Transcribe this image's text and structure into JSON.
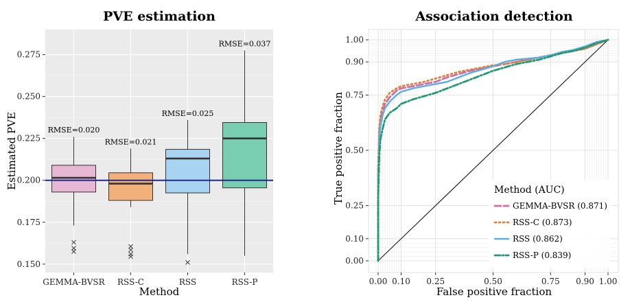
{
  "chart_data": [
    {
      "type": "box",
      "title": "PVE estimation",
      "xlabel": "Method",
      "ylabel": "Estimated PVE",
      "ylim": [
        0.145,
        0.29
      ],
      "yticks": [
        0.15,
        0.175,
        0.2,
        0.225,
        0.25,
        0.275
      ],
      "ytick_labels": [
        "0.150",
        "0.175",
        "0.200",
        "0.225",
        "0.250",
        "0.275"
      ],
      "reference_line": 0.2,
      "reference_color": "#1f2a8c",
      "categories": [
        "GEMMA-BVSR",
        "RSS-C",
        "RSS",
        "RSS-P"
      ],
      "boxes": [
        {
          "name": "GEMMA-BVSR",
          "color": "#e6b8d3",
          "whisker_low": 0.173,
          "q1": 0.193,
          "median": 0.2015,
          "q3": 0.209,
          "whisker_high": 0.226,
          "outliers": [
            0.163,
            0.1595,
            0.1575
          ],
          "rmse_label": "RMSE=0.020"
        },
        {
          "name": "RSS-C",
          "color": "#f2b07a",
          "whisker_low": 0.184,
          "q1": 0.188,
          "median": 0.198,
          "q3": 0.2045,
          "whisker_high": 0.219,
          "outliers": [
            0.1605,
            0.1585,
            0.156,
            0.1545
          ],
          "rmse_label": "RMSE=0.021"
        },
        {
          "name": "RSS",
          "color": "#a8d4f2",
          "whisker_low": 0.156,
          "q1": 0.1925,
          "median": 0.213,
          "q3": 0.2185,
          "whisker_high": 0.236,
          "outliers": [
            0.151
          ],
          "rmse_label": "RMSE=0.025"
        },
        {
          "name": "RSS-P",
          "color": "#79cdb0",
          "whisker_low": 0.155,
          "q1": 0.1955,
          "median": 0.225,
          "q3": 0.2345,
          "whisker_high": 0.2775,
          "outliers": [],
          "rmse_label": "RMSE=0.037"
        }
      ]
    },
    {
      "type": "line",
      "title": "Association detection",
      "xlabel": "False positive fraction",
      "ylabel": "True positive fraction",
      "xlim": [
        0,
        1
      ],
      "ylim": [
        0,
        1
      ],
      "xticks": [
        0.0,
        0.1,
        0.25,
        0.5,
        0.75,
        0.9,
        1.0
      ],
      "xtick_labels": [
        "0.00",
        "0.10",
        "0.25",
        "0.50",
        "0.75",
        "0.90",
        "1.00"
      ],
      "yticks": [
        0.0,
        0.1,
        0.25,
        0.5,
        0.75,
        0.9,
        1.0
      ],
      "ytick_labels": [
        "0.00",
        "0.10",
        "0.25",
        "0.50",
        "0.75",
        "0.90",
        "1.00"
      ],
      "legend_title": "Method (AUC)",
      "legend_position": "bottom-right",
      "series": [
        {
          "name": "GEMMA-BVSR (0.871)",
          "color": "#d16aa6",
          "dash": "long",
          "x": [
            0,
            0,
            0.005,
            0.01,
            0.02,
            0.03,
            0.05,
            0.08,
            0.1,
            0.15,
            0.2,
            0.25,
            0.3,
            0.35,
            0.4,
            0.45,
            0.5,
            0.55,
            0.6,
            0.65,
            0.7,
            0.75,
            0.8,
            0.85,
            0.9,
            0.95,
            1.0
          ],
          "y": [
            0,
            0.4,
            0.58,
            0.64,
            0.68,
            0.71,
            0.74,
            0.77,
            0.78,
            0.79,
            0.8,
            0.81,
            0.83,
            0.845,
            0.86,
            0.87,
            0.88,
            0.89,
            0.9,
            0.91,
            0.92,
            0.93,
            0.94,
            0.95,
            0.96,
            0.98,
            1.0
          ]
        },
        {
          "name": "RSS-C (0.873)",
          "color": "#e0803a",
          "dash": "dot",
          "x": [
            0,
            0,
            0.005,
            0.01,
            0.02,
            0.03,
            0.05,
            0.08,
            0.1,
            0.15,
            0.2,
            0.25,
            0.3,
            0.35,
            0.4,
            0.45,
            0.5,
            0.55,
            0.6,
            0.65,
            0.7,
            0.75,
            0.8,
            0.85,
            0.9,
            0.95,
            1.0
          ],
          "y": [
            0,
            0.42,
            0.6,
            0.66,
            0.7,
            0.73,
            0.76,
            0.78,
            0.79,
            0.8,
            0.81,
            0.825,
            0.84,
            0.855,
            0.865,
            0.875,
            0.885,
            0.89,
            0.9,
            0.91,
            0.92,
            0.93,
            0.94,
            0.95,
            0.96,
            0.98,
            1.0
          ]
        },
        {
          "name": "RSS (0.862)",
          "color": "#5aaee8",
          "dash": "solid",
          "x": [
            0,
            0,
            0.005,
            0.01,
            0.02,
            0.03,
            0.05,
            0.08,
            0.1,
            0.15,
            0.2,
            0.25,
            0.3,
            0.35,
            0.4,
            0.45,
            0.5,
            0.55,
            0.6,
            0.65,
            0.7,
            0.75,
            0.8,
            0.85,
            0.9,
            0.95,
            1.0
          ],
          "y": [
            0,
            0.35,
            0.55,
            0.61,
            0.66,
            0.69,
            0.72,
            0.75,
            0.765,
            0.78,
            0.79,
            0.8,
            0.81,
            0.83,
            0.85,
            0.865,
            0.88,
            0.9,
            0.91,
            0.915,
            0.92,
            0.93,
            0.945,
            0.955,
            0.97,
            0.99,
            1.0
          ]
        },
        {
          "name": "RSS-P (0.839)",
          "color": "#1e9c70",
          "dash": "dashdot",
          "x": [
            0,
            0,
            0.005,
            0.01,
            0.02,
            0.03,
            0.05,
            0.08,
            0.1,
            0.15,
            0.2,
            0.25,
            0.3,
            0.35,
            0.4,
            0.45,
            0.5,
            0.55,
            0.6,
            0.65,
            0.7,
            0.75,
            0.8,
            0.85,
            0.9,
            0.95,
            1.0
          ],
          "y": [
            0,
            0.28,
            0.48,
            0.55,
            0.6,
            0.64,
            0.67,
            0.69,
            0.71,
            0.73,
            0.745,
            0.76,
            0.78,
            0.8,
            0.82,
            0.84,
            0.86,
            0.875,
            0.89,
            0.9,
            0.91,
            0.925,
            0.94,
            0.95,
            0.965,
            0.985,
            1.0
          ]
        }
      ]
    }
  ]
}
